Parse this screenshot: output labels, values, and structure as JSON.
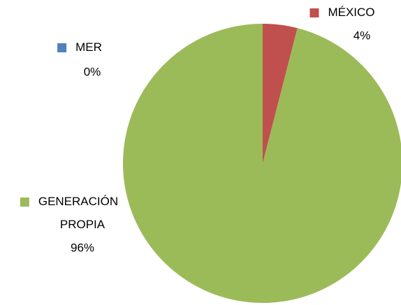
{
  "chart_data": {
    "type": "pie",
    "categories": [
      "MER",
      "MÉXICO",
      "GENERACIÓN PROPIA"
    ],
    "values": [
      0,
      4,
      96
    ],
    "value_labels": [
      "0%",
      "4%",
      "96%"
    ],
    "colors": [
      "#4f81bd",
      "#c0504d",
      "#9bbb59"
    ]
  }
}
